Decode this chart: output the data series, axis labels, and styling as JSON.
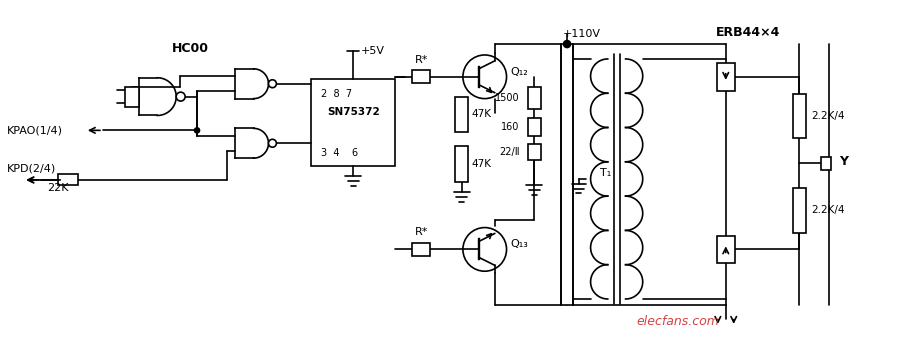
{
  "bg_color": "#ffffff",
  "line_color": "#000000",
  "line_width": 1.2,
  "title": "",
  "watermark": "elecfans.com",
  "labels": {
    "hc00": "HC00",
    "sn75372": "SN75372",
    "q12": "Q₁₂",
    "q13": "Q₁₃",
    "plus5v": "+5V",
    "plus110v": "+110V",
    "erb44": "ERB44×4",
    "t1": "T₁",
    "r_star_top": "R*",
    "r_star_bot": "R*",
    "47k_top": "47K",
    "47k_bot": "47K",
    "1500": "1500",
    "160": "160",
    "22_cap": "22/Ⅱ",
    "22k": "22K",
    "2_2k_4_top": "2.2K/4",
    "2_2k_4_bot": "2.2K/4",
    "y_label": "Y",
    "kpao": "KPAO(1/4)",
    "kpd": "KPD(2/4)",
    "pins": "2  8  7",
    "pins2": "3  4    6"
  }
}
